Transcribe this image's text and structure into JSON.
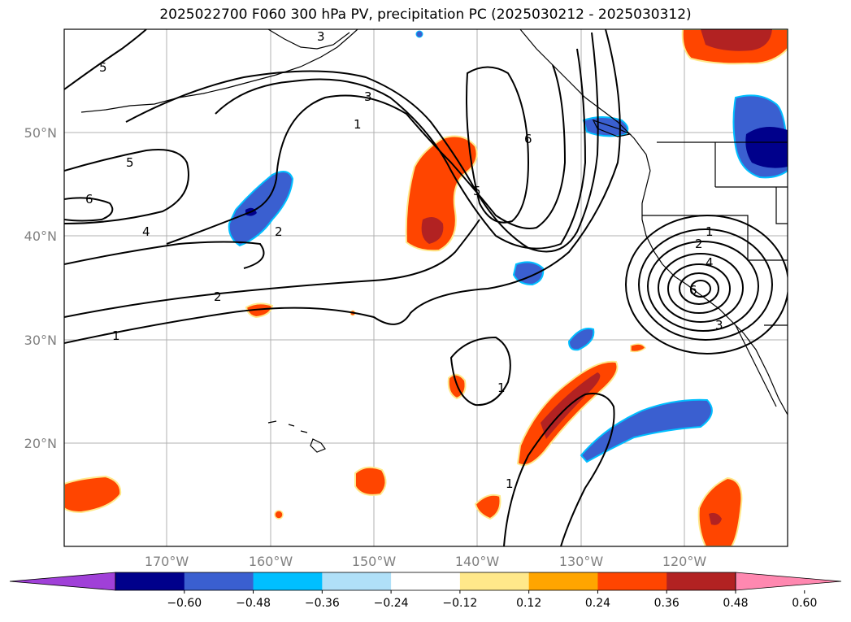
{
  "title": "2025022700 F060 300 hPa PV, precipitation PC (2025030212 - 2025030312)",
  "lat_labels": [
    "50°N",
    "40°N",
    "30°N",
    "20°N"
  ],
  "lon_labels": [
    "170°W",
    "160°W",
    "150°W",
    "140°W",
    "130°W",
    "120°W"
  ],
  "colorbar": {
    "tick_labels": [
      "−0.60",
      "−0.48",
      "−0.36",
      "−0.24",
      "−0.12",
      "0.12",
      "0.24",
      "0.36",
      "0.48",
      "0.60"
    ],
    "colors": [
      "#a040d8",
      "#00008b",
      "#3a5fd0",
      "#00bfff",
      "#b0e0f8",
      "#ffffff",
      "#ffe88a",
      "#ffa500",
      "#ff4500",
      "#b22222",
      "#ff88b0"
    ]
  },
  "pv_contour_labels": [
    "1",
    "2",
    "3",
    "4",
    "5",
    "6"
  ],
  "colors": {
    "land_outline": "#000000",
    "grid": "#b0b0b0",
    "contour": "#000000"
  }
}
